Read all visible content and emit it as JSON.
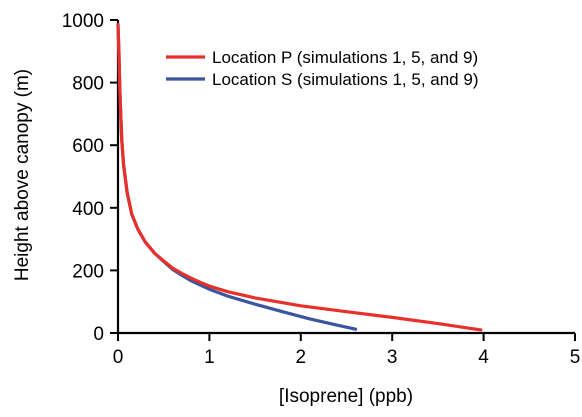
{
  "chart_data": {
    "type": "line",
    "title": "",
    "xlabel": "[Isoprene] (ppb)",
    "ylabel": "Height above canopy (m)",
    "xlim": [
      0,
      5
    ],
    "ylim": [
      0,
      1000
    ],
    "x_ticks": [
      0,
      1,
      2,
      3,
      4,
      5
    ],
    "y_ticks": [
      0,
      200,
      400,
      600,
      800,
      1000
    ],
    "x_tick_labels": [
      "0",
      "1",
      "2",
      "3",
      "4",
      "5"
    ],
    "y_tick_labels": [
      "0",
      "200",
      "400",
      "600",
      "800",
      "1000"
    ],
    "grid": false,
    "legend_position": "top-right",
    "series": [
      {
        "name": "Location P (simulations 1, 5, and 9)",
        "color": "#e8302a",
        "x": [
          0.0,
          0.01,
          0.02,
          0.04,
          0.06,
          0.1,
          0.15,
          0.22,
          0.3,
          0.4,
          0.5,
          0.6,
          0.7,
          0.8,
          0.9,
          1.0,
          1.2,
          1.5,
          2.0,
          2.5,
          3.0,
          3.5,
          3.97
        ],
        "y": [
          985,
          900,
          780,
          620,
          540,
          450,
          380,
          330,
          290,
          255,
          230,
          207,
          190,
          175,
          162,
          150,
          132,
          112,
          87,
          68,
          50,
          30,
          10
        ]
      },
      {
        "name": "Location S (simulations 1, 5, and 9)",
        "color": "#3b55a0",
        "x": [
          0.0,
          0.01,
          0.02,
          0.04,
          0.06,
          0.1,
          0.15,
          0.22,
          0.3,
          0.4,
          0.5,
          0.6,
          0.7,
          0.8,
          0.9,
          1.0,
          1.2,
          1.5,
          1.8,
          2.1,
          2.4,
          2.6
        ],
        "y": [
          985,
          900,
          780,
          620,
          540,
          450,
          380,
          330,
          290,
          255,
          228,
          203,
          184,
          167,
          153,
          140,
          118,
          92,
          68,
          45,
          25,
          12
        ]
      }
    ]
  }
}
